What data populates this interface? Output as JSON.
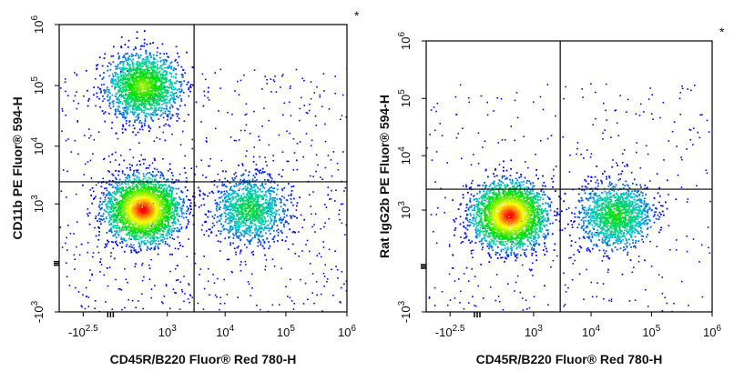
{
  "chart_data": [
    {
      "type": "scatter",
      "subtype": "flow-cytometry-density-dot-plot",
      "corner_mark": "*",
      "xlabel": "CD45R/B220 Fluor® Red 780-H",
      "ylabel": "CD11b PE Fluor® 594-H",
      "x_scale": "biexponential",
      "y_scale": "biexponential",
      "xlim": [
        -1000,
        1000000
      ],
      "ylim": [
        -1000,
        1000000
      ],
      "x_ticks": [
        {
          "label_base": "-10",
          "label_exp": "2.5",
          "value": -316
        },
        {
          "label_base": "10",
          "label_exp": "3",
          "value": 1000
        },
        {
          "label_base": "10",
          "label_exp": "4",
          "value": 10000
        },
        {
          "label_base": "10",
          "label_exp": "5",
          "value": 100000
        },
        {
          "label_base": "10",
          "label_exp": "6",
          "value": 1000000
        }
      ],
      "y_ticks": [
        {
          "label_base": "-10",
          "label_exp": "3",
          "value": -1000
        },
        {
          "label_base": "10",
          "label_exp": "3",
          "value": 1000
        },
        {
          "label_base": "10",
          "label_exp": "4",
          "value": 10000
        },
        {
          "label_base": "10",
          "label_exp": "5",
          "value": 100000
        },
        {
          "label_base": "10",
          "label_exp": "6",
          "value": 1000000
        }
      ],
      "gate_x": 3000,
      "gate_y": 2500,
      "populations": [
        {
          "x": 300,
          "y": 100000,
          "density": 0.65
        },
        {
          "x": 300,
          "y": 800,
          "density": 1.0
        },
        {
          "x": 25000,
          "y": 800,
          "density": 0.45
        }
      ]
    },
    {
      "type": "scatter",
      "subtype": "flow-cytometry-density-dot-plot",
      "corner_mark": "*",
      "xlabel": "CD45R/B220 Fluor® Red 780-H",
      "ylabel": "Rat IgG2b PE Fluor® 594-H",
      "x_scale": "biexponential",
      "y_scale": "biexponential",
      "xlim": [
        -1000,
        1000000
      ],
      "ylim": [
        -1000,
        1000000
      ],
      "x_ticks": [
        {
          "label_base": "-10",
          "label_exp": "2.5",
          "value": -316
        },
        {
          "label_base": "10",
          "label_exp": "3",
          "value": 1000
        },
        {
          "label_base": "10",
          "label_exp": "4",
          "value": 10000
        },
        {
          "label_base": "10",
          "label_exp": "5",
          "value": 100000
        },
        {
          "label_base": "10",
          "label_exp": "6",
          "value": 1000000
        }
      ],
      "y_ticks": [
        {
          "label_base": "-10",
          "label_exp": "3",
          "value": -1000
        },
        {
          "label_base": "10",
          "label_exp": "3",
          "value": 1000
        },
        {
          "label_base": "10",
          "label_exp": "4",
          "value": 10000
        },
        {
          "label_base": "10",
          "label_exp": "5",
          "value": 100000
        },
        {
          "label_base": "10",
          "label_exp": "6",
          "value": 1000000
        }
      ],
      "gate_x": 3000,
      "gate_y": 2500,
      "populations": [
        {
          "x": 300,
          "y": 800,
          "density": 1.0
        },
        {
          "x": 25000,
          "y": 800,
          "density": 0.5
        }
      ]
    }
  ],
  "palette": {
    "low": "#0000ff",
    "mid": "#00c8c8",
    "midhigh": "#00e000",
    "high": "#ffff00",
    "peak": "#ff0000",
    "axis": "#000000"
  }
}
